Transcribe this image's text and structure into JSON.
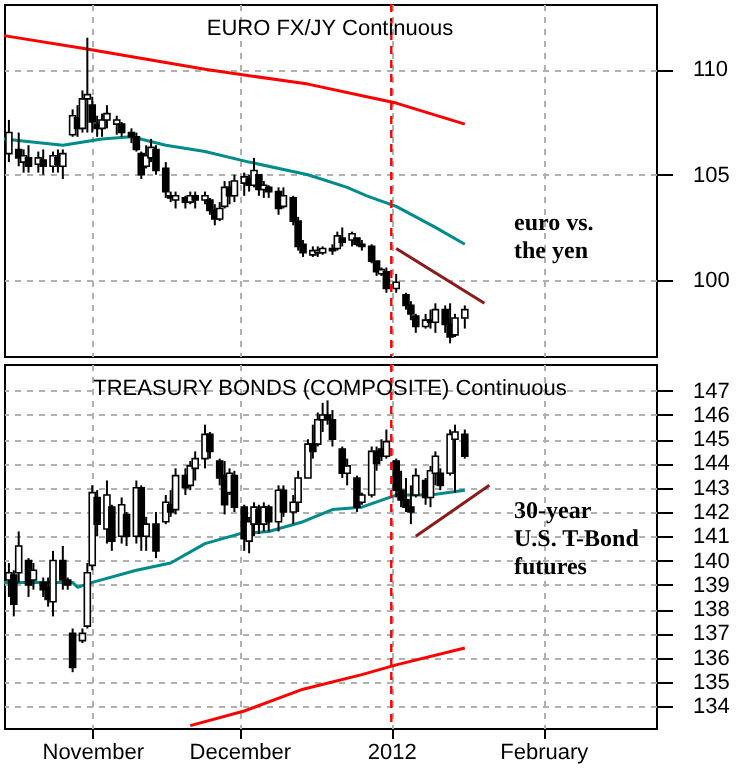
{
  "chart_data": [
    {
      "type": "candlestick",
      "title": "EURO FX/JY Continuous",
      "annotations": [
        "euro vs.\nthe yen"
      ],
      "x": [
        "2011-10-15",
        "2011-10-17",
        "2011-10-18",
        "2011-10-19",
        "2011-10-21",
        "2011-10-22",
        "2011-10-24",
        "2011-10-25",
        "2011-10-26",
        "2011-10-28",
        "2011-10-29",
        "2011-10-30",
        "2011-10-31",
        "2011-11-01",
        "2011-11-02",
        "2011-11-03",
        "2011-11-04",
        "2011-11-06",
        "2011-11-07",
        "2011-11-09",
        "2011-11-10",
        "2011-11-11",
        "2011-11-12",
        "2011-11-13",
        "2011-11-14",
        "2011-11-16",
        "2011-11-17",
        "2011-11-18",
        "2011-11-20",
        "2011-11-21",
        "2011-11-22",
        "2011-11-24",
        "2011-11-25",
        "2011-11-26",
        "2011-11-27",
        "2011-11-28",
        "2011-11-29",
        "2011-11-30",
        "2011-12-02",
        "2011-12-03",
        "2011-12-04",
        "2011-12-05",
        "2011-12-06",
        "2011-12-07",
        "2011-12-09",
        "2011-12-10",
        "2011-12-12",
        "2011-12-13",
        "2011-12-14",
        "2011-12-16",
        "2011-12-17",
        "2011-12-18",
        "2011-12-20",
        "2011-12-21",
        "2011-12-22",
        "2011-12-24",
        "2011-12-25",
        "2011-12-26",
        "2011-12-28",
        "2011-12-29",
        "2011-12-30",
        "2011-12-31",
        "2012-01-02",
        "2012-01-04",
        "2012-01-05",
        "2012-01-06",
        "2012-01-08",
        "2012-01-09",
        "2012-01-10",
        "2012-01-12",
        "2012-01-13",
        "2012-01-14",
        "2012-01-16"
      ],
      "ohlc": [
        [
          106.0,
          107.6,
          105.6,
          107.0
        ],
        [
          106.2,
          107.0,
          105.4,
          105.8
        ],
        [
          105.6,
          106.2,
          105.1,
          105.9
        ],
        [
          105.8,
          106.4,
          105.1,
          105.4
        ],
        [
          105.5,
          106.1,
          105.1,
          105.8
        ],
        [
          105.7,
          106.2,
          105.0,
          105.4
        ],
        [
          105.4,
          106.1,
          105.1,
          105.9
        ],
        [
          105.8,
          106.2,
          105.1,
          105.5
        ],
        [
          105.4,
          106.2,
          104.8,
          106.0
        ],
        [
          106.9,
          108.1,
          106.8,
          107.8
        ],
        [
          107.7,
          108.3,
          106.8,
          107.2
        ],
        [
          107.2,
          109.0,
          107.0,
          108.6
        ],
        [
          108.6,
          111.5,
          107.0,
          108.8
        ],
        [
          108.3,
          108.7,
          107.0,
          107.5
        ],
        [
          107.4,
          107.8,
          106.8,
          107.2
        ],
        [
          107.2,
          107.9,
          106.8,
          107.6
        ],
        [
          107.6,
          108.3,
          107.2,
          107.9
        ],
        [
          107.4,
          107.8,
          106.9,
          107.6
        ],
        [
          107.4,
          107.5,
          106.8,
          107.0
        ],
        [
          107.0,
          107.2,
          106.5,
          106.8
        ],
        [
          106.8,
          107.0,
          106.1,
          106.2
        ],
        [
          106.0,
          106.1,
          104.8,
          105.0
        ],
        [
          105.4,
          106.4,
          105.3,
          105.9
        ],
        [
          105.8,
          106.7,
          105.6,
          106.3
        ],
        [
          106.2,
          106.4,
          105.0,
          105.2
        ],
        [
          105.3,
          105.6,
          103.9,
          104.2
        ],
        [
          104.0,
          104.2,
          103.7,
          103.9
        ],
        [
          103.8,
          104.2,
          103.4,
          104.0
        ],
        [
          103.9,
          104.0,
          103.4,
          103.7
        ],
        [
          103.7,
          104.2,
          103.6,
          104.0
        ],
        [
          104.0,
          104.2,
          103.4,
          103.8
        ],
        [
          103.8,
          104.2,
          103.6,
          104.0
        ],
        [
          103.8,
          103.9,
          103.1,
          103.3
        ],
        [
          103.3,
          103.6,
          102.6,
          102.9
        ],
        [
          102.9,
          103.7,
          102.8,
          103.4
        ],
        [
          103.5,
          104.7,
          103.4,
          104.4
        ],
        [
          104.4,
          104.7,
          103.6,
          104.0
        ],
        [
          104.0,
          105.0,
          103.7,
          104.7
        ],
        [
          104.6,
          105.1,
          104.0,
          104.9
        ],
        [
          104.8,
          105.0,
          104.2,
          104.5
        ],
        [
          104.5,
          105.8,
          104.4,
          105.2
        ],
        [
          105.0,
          105.0,
          104.0,
          104.3
        ],
        [
          104.3,
          104.7,
          103.9,
          104.5
        ],
        [
          104.4,
          104.5,
          103.9,
          104.2
        ],
        [
          104.2,
          104.4,
          103.1,
          103.4
        ],
        [
          103.5,
          104.4,
          103.4,
          104.0
        ],
        [
          103.9,
          104.0,
          102.6,
          102.8
        ],
        [
          102.8,
          103.0,
          101.4,
          101.6
        ],
        [
          101.7,
          101.9,
          101.1,
          101.3
        ],
        [
          101.2,
          101.6,
          101.1,
          101.4
        ],
        [
          101.3,
          101.6,
          101.1,
          101.4
        ],
        [
          101.3,
          101.6,
          101.2,
          101.5
        ],
        [
          101.5,
          101.7,
          101.2,
          101.4
        ],
        [
          101.5,
          102.3,
          101.4,
          102.1
        ],
        [
          102.0,
          102.5,
          101.6,
          101.8
        ],
        [
          101.9,
          102.3,
          101.6,
          102.2
        ],
        [
          102.0,
          102.0,
          101.6,
          101.7
        ],
        [
          101.7,
          101.9,
          101.4,
          101.6
        ],
        [
          101.6,
          101.7,
          100.8,
          100.9
        ],
        [
          100.9,
          100.9,
          100.2,
          100.4
        ],
        [
          100.3,
          100.6,
          100.2,
          100.5
        ],
        [
          100.4,
          100.6,
          99.4,
          99.6
        ],
        [
          99.6,
          100.3,
          99.4,
          99.9
        ],
        [
          99.3,
          99.4,
          98.6,
          98.8
        ],
        [
          98.8,
          99.0,
          98.1,
          98.4
        ],
        [
          98.3,
          98.4,
          97.5,
          97.8
        ],
        [
          97.8,
          98.4,
          97.7,
          98.1
        ],
        [
          98.1,
          98.6,
          97.7,
          98.0
        ],
        [
          98.0,
          98.9,
          97.5,
          98.6
        ],
        [
          98.6,
          98.8,
          97.5,
          97.9
        ],
        [
          97.9,
          98.9,
          97.0,
          97.3
        ],
        [
          97.4,
          98.4,
          97.3,
          98.2
        ],
        [
          98.2,
          98.8,
          97.7,
          98.6
        ]
      ],
      "series": [
        {
          "type": "line",
          "color": "#ff0000",
          "x": [
            "2011-10-14",
            "2011-10-30",
            "2011-11-24",
            "2011-12-15",
            "2011-12-27",
            "2012-01-02",
            "2012-01-16"
          ],
          "values": [
            111.6,
            111.0,
            110.0,
            109.3,
            108.7,
            108.4,
            107.4
          ]
        },
        {
          "type": "line",
          "color": "#008b8b",
          "x": [
            "2011-10-14",
            "2011-10-26",
            "2011-11-03",
            "2011-11-09",
            "2011-11-16",
            "2011-11-24",
            "2011-12-03",
            "2011-12-15",
            "2011-12-23",
            "2011-12-27",
            "2012-01-02",
            "2012-01-10",
            "2012-01-16"
          ],
          "values": [
            106.7,
            106.4,
            106.7,
            106.8,
            106.4,
            106.1,
            105.6,
            105.0,
            104.4,
            104.0,
            103.5,
            102.5,
            101.7
          ]
        },
        {
          "type": "line",
          "color": "#8b1a1a",
          "x": [
            "2012-01-02",
            "2012-01-20"
          ],
          "values": [
            101.5,
            98.9
          ]
        }
      ],
      "ref_lines": [
        {
          "axis": "x",
          "value": "2012-01-01",
          "color": "#ff0000",
          "line_style": "dashed"
        }
      ],
      "xlim": [
        "2011-10-14",
        "2012-02-24"
      ],
      "xticks": [
        {
          "value": "2011-11-01",
          "label": null
        },
        {
          "value": "2011-12-01",
          "label": null
        },
        {
          "value": "2012-01-01",
          "label": null
        },
        {
          "value": "2012-02-01",
          "label": null
        }
      ],
      "ylim": [
        96.4,
        113.1
      ],
      "yticks": [
        100,
        105,
        110
      ],
      "grid": true,
      "tick_labels": "y"
    },
    {
      "type": "candlestick",
      "title": "TREASURY BONDS (COMPOSITE) Continuous",
      "annotations": [
        "30-year\nU.S. T-Bond\nfutures"
      ],
      "x": [
        "2011-10-15",
        "2011-10-16",
        "2011-10-17",
        "2011-10-19",
        "2011-10-20",
        "2011-10-22",
        "2011-10-23",
        "2011-10-24",
        "2011-10-26",
        "2011-10-27",
        "2011-10-28",
        "2011-10-30",
        "2011-10-31",
        "2011-11-01",
        "2011-11-02",
        "2011-11-04",
        "2011-11-05",
        "2011-11-07",
        "2011-11-08",
        "2011-11-10",
        "2011-11-11",
        "2011-11-12",
        "2011-11-14",
        "2011-11-16",
        "2011-11-17",
        "2011-11-18",
        "2011-11-20",
        "2011-11-21",
        "2011-11-22",
        "2011-11-24",
        "2011-11-25",
        "2011-11-27",
        "2011-11-28",
        "2011-11-29",
        "2011-11-30",
        "2011-12-02",
        "2011-12-03",
        "2011-12-04",
        "2011-12-05",
        "2011-12-06",
        "2011-12-07",
        "2011-12-09",
        "2011-12-10",
        "2011-12-12",
        "2011-12-13",
        "2011-12-15",
        "2011-12-16",
        "2011-12-17",
        "2011-12-18",
        "2011-12-19",
        "2011-12-20",
        "2011-12-22",
        "2011-12-23",
        "2011-12-25",
        "2011-12-26",
        "2011-12-28",
        "2011-12-29",
        "2011-12-30",
        "2011-12-31",
        "2012-01-02",
        "2012-01-03",
        "2012-01-04",
        "2012-01-05",
        "2012-01-06",
        "2012-01-08",
        "2012-01-09",
        "2012-01-10",
        "2012-01-11",
        "2012-01-13",
        "2012-01-14",
        "2012-01-16"
      ],
      "ohlc": [
        [
          139.2,
          139.9,
          138.5,
          139.5
        ],
        [
          139.4,
          139.6,
          137.7,
          138.2
        ],
        [
          139.5,
          141.2,
          139.1,
          140.6
        ],
        [
          140.0,
          140.1,
          138.5,
          139.0
        ],
        [
          139.2,
          139.9,
          138.8,
          139.6
        ],
        [
          139.1,
          139.3,
          138.5,
          138.8
        ],
        [
          138.9,
          139.3,
          138.1,
          138.4
        ],
        [
          138.3,
          140.4,
          137.7,
          140.0
        ],
        [
          140.0,
          140.6,
          138.8,
          139.2
        ],
        [
          139.2,
          139.3,
          138.8,
          139.0
        ],
        [
          137.0,
          137.2,
          135.4,
          135.6
        ],
        [
          136.7,
          137.2,
          136.6,
          137.0
        ],
        [
          137.3,
          139.9,
          137.2,
          139.5
        ],
        [
          139.8,
          143.1,
          139.6,
          142.8
        ],
        [
          142.6,
          142.9,
          141.0,
          141.5
        ],
        [
          141.3,
          143.3,
          140.7,
          142.7
        ],
        [
          142.2,
          142.3,
          140.4,
          140.8
        ],
        [
          141.0,
          142.6,
          140.7,
          142.3
        ],
        [
          141.9,
          142.0,
          140.6,
          141.0
        ],
        [
          141.0,
          143.3,
          140.7,
          143.0
        ],
        [
          143.0,
          143.1,
          140.4,
          141.0
        ],
        [
          141.0,
          141.8,
          140.4,
          141.5
        ],
        [
          141.5,
          142.0,
          140.1,
          140.4
        ],
        [
          141.6,
          142.7,
          141.5,
          142.4
        ],
        [
          142.3,
          142.9,
          141.8,
          142.0
        ],
        [
          142.1,
          143.8,
          141.9,
          143.5
        ],
        [
          143.5,
          143.8,
          142.7,
          143.0
        ],
        [
          143.1,
          144.1,
          142.9,
          143.9
        ],
        [
          143.8,
          144.5,
          143.3,
          144.2
        ],
        [
          144.2,
          145.6,
          143.8,
          145.2
        ],
        [
          145.2,
          145.3,
          144.2,
          144.5
        ],
        [
          144.1,
          144.2,
          143.1,
          143.4
        ],
        [
          143.5,
          144.1,
          141.9,
          142.3
        ],
        [
          142.8,
          143.8,
          142.7,
          143.6
        ],
        [
          143.5,
          143.7,
          142.0,
          142.2
        ],
        [
          142.2,
          142.3,
          140.4,
          140.9
        ],
        [
          140.8,
          141.8,
          140.3,
          141.6
        ],
        [
          141.5,
          142.4,
          141.0,
          142.2
        ],
        [
          142.1,
          142.3,
          141.1,
          141.5
        ],
        [
          141.5,
          142.4,
          141.2,
          142.2
        ],
        [
          142.2,
          142.3,
          141.2,
          141.6
        ],
        [
          141.6,
          143.1,
          141.2,
          142.9
        ],
        [
          142.9,
          143.1,
          141.8,
          142.0
        ],
        [
          142.0,
          142.7,
          141.5,
          142.4
        ],
        [
          142.4,
          143.7,
          142.0,
          143.4
        ],
        [
          143.4,
          145.0,
          143.4,
          144.8
        ],
        [
          144.8,
          145.6,
          144.2,
          144.5
        ],
        [
          144.8,
          146.1,
          144.7,
          145.8
        ],
        [
          145.8,
          146.5,
          145.3,
          146.0
        ],
        [
          146.0,
          146.6,
          145.6,
          145.8
        ],
        [
          145.8,
          146.2,
          144.7,
          145.0
        ],
        [
          144.6,
          144.7,
          143.4,
          143.6
        ],
        [
          143.6,
          144.2,
          143.1,
          143.9
        ],
        [
          143.4,
          143.5,
          142.0,
          142.2
        ],
        [
          142.4,
          142.8,
          142.3,
          142.7
        ],
        [
          142.7,
          144.7,
          142.6,
          144.5
        ],
        [
          144.5,
          144.7,
          143.7,
          144.0
        ],
        [
          144.6,
          145.0,
          144.1,
          144.3
        ],
        [
          144.3,
          145.4,
          144.2,
          144.9
        ],
        [
          144.1,
          144.2,
          142.6,
          142.9
        ],
        [
          142.9,
          143.7,
          142.2,
          142.5
        ],
        [
          142.5,
          143.4,
          142.0,
          142.2
        ],
        [
          142.2,
          143.1,
          141.5,
          142.0
        ],
        [
          142.7,
          143.8,
          142.6,
          143.5
        ],
        [
          143.3,
          143.4,
          142.3,
          142.6
        ],
        [
          142.6,
          143.9,
          142.2,
          143.7
        ],
        [
          143.6,
          144.5,
          143.1,
          144.3
        ],
        [
          143.6,
          143.8,
          142.9,
          143.1
        ],
        [
          143.6,
          145.4,
          143.5,
          145.2
        ],
        [
          145.0,
          145.6,
          142.8,
          145.3
        ],
        [
          145.2,
          145.4,
          144.2,
          144.3
        ]
      ],
      "series": [
        {
          "type": "line",
          "color": "#ff0000",
          "x": [
            "2011-11-21",
            "2011-12-02",
            "2011-12-14",
            "2011-12-26",
            "2012-01-02",
            "2012-01-16"
          ],
          "values": [
            133.2,
            133.8,
            134.7,
            135.3,
            135.7,
            136.4
          ]
        },
        {
          "type": "line",
          "color": "#008b8b",
          "x": [
            "2011-10-14",
            "2011-10-28",
            "2011-10-29",
            "2011-11-01",
            "2011-11-10",
            "2011-11-17",
            "2011-11-24",
            "2011-12-01",
            "2011-12-07",
            "2011-12-14",
            "2011-12-20",
            "2011-12-26",
            "2012-01-02",
            "2012-01-09",
            "2012-01-16"
          ],
          "values": [
            139.1,
            139.1,
            138.9,
            139.1,
            139.6,
            139.9,
            140.7,
            141.1,
            141.2,
            141.6,
            142.1,
            142.2,
            142.7,
            142.7,
            142.9
          ]
        },
        {
          "type": "line",
          "color": "#8b1a1a",
          "x": [
            "2012-01-06",
            "2012-01-21"
          ],
          "values": [
            141.0,
            143.1
          ]
        }
      ],
      "ref_lines": [
        {
          "axis": "x",
          "value": "2012-01-01",
          "color": "#ff0000",
          "line_style": "dashed"
        }
      ],
      "xlim": [
        "2011-10-14",
        "2012-02-24"
      ],
      "xticks": [
        {
          "value": "2011-11-01",
          "label": "November"
        },
        {
          "value": "2011-12-01",
          "label": "December"
        },
        {
          "value": "2012-01-01",
          "label": "2012"
        },
        {
          "value": "2012-02-01",
          "label": "February"
        }
      ],
      "ylim": [
        133.1,
        148.1
      ],
      "yticks": [
        134,
        135,
        136,
        137,
        138,
        139,
        140,
        141,
        142,
        143,
        144,
        145,
        146,
        147
      ],
      "grid": true
    }
  ]
}
